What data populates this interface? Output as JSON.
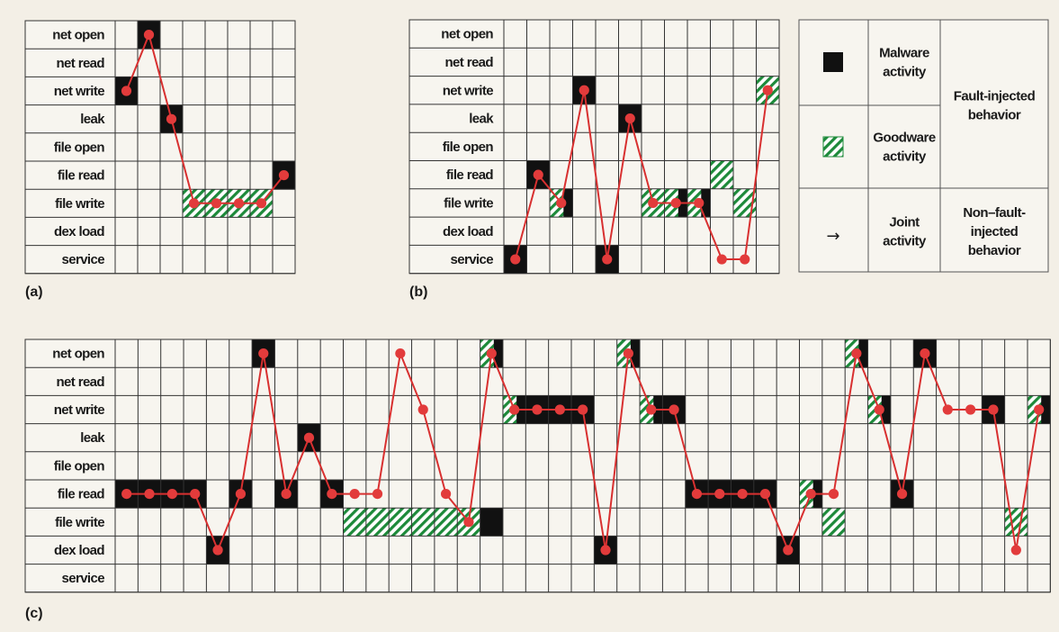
{
  "rows": [
    "net open",
    "net read",
    "net write",
    "leak",
    "file open",
    "file read",
    "file write",
    "dex load",
    "service"
  ],
  "panels": [
    {
      "letter": "(a)",
      "columns": 8,
      "malware": [
        [
          1,
          0
        ],
        [
          0,
          2
        ],
        [
          2,
          3
        ],
        [
          7,
          5
        ]
      ],
      "goodware": [
        [
          3,
          6
        ],
        [
          4,
          6
        ],
        [
          5,
          6
        ],
        [
          6,
          6
        ]
      ],
      "path": [
        [
          0,
          2
        ],
        [
          1,
          0
        ],
        [
          2,
          3
        ],
        [
          3,
          6
        ],
        [
          4,
          6
        ],
        [
          5,
          6
        ],
        [
          6,
          6
        ],
        [
          7,
          5
        ]
      ]
    },
    {
      "letter": "(b)",
      "columns": 12,
      "malware": [
        [
          0,
          8
        ],
        [
          1,
          5
        ],
        [
          2,
          6
        ],
        [
          3,
          2
        ],
        [
          4,
          8
        ],
        [
          5,
          3
        ],
        [
          7,
          6
        ],
        [
          8,
          6
        ]
      ],
      "goodware": [
        [
          2,
          6
        ],
        [
          6,
          6
        ],
        [
          7,
          6
        ],
        [
          8,
          6
        ],
        [
          9,
          5
        ],
        [
          10,
          6
        ],
        [
          11,
          2
        ]
      ],
      "path": [
        [
          0,
          8
        ],
        [
          1,
          5
        ],
        [
          2,
          6
        ],
        [
          3,
          2
        ],
        [
          4,
          8
        ],
        [
          5,
          3
        ],
        [
          6,
          6
        ],
        [
          7,
          6
        ],
        [
          8,
          6
        ],
        [
          9,
          8
        ],
        [
          10,
          8
        ],
        [
          11,
          2
        ]
      ]
    },
    {
      "letter": "(c)",
      "columns": 41,
      "malware": [
        [
          0,
          5
        ],
        [
          1,
          5
        ],
        [
          2,
          5
        ],
        [
          3,
          5
        ],
        [
          4,
          7
        ],
        [
          5,
          5
        ],
        [
          6,
          0
        ],
        [
          7,
          5
        ],
        [
          8,
          3
        ],
        [
          9,
          5
        ],
        [
          16,
          6
        ],
        [
          16,
          0
        ],
        [
          17,
          2
        ],
        [
          18,
          2
        ],
        [
          19,
          2
        ],
        [
          20,
          2
        ],
        [
          21,
          7
        ],
        [
          22,
          0
        ],
        [
          23,
          2
        ],
        [
          24,
          2
        ],
        [
          25,
          5
        ],
        [
          26,
          5
        ],
        [
          27,
          5
        ],
        [
          28,
          5
        ],
        [
          29,
          7
        ],
        [
          30,
          5
        ],
        [
          32,
          0
        ],
        [
          33,
          2
        ],
        [
          34,
          5
        ],
        [
          35,
          0
        ],
        [
          38,
          2
        ],
        [
          40,
          2
        ]
      ],
      "goodware": [
        [
          10,
          6
        ],
        [
          11,
          6
        ],
        [
          12,
          6
        ],
        [
          13,
          6
        ],
        [
          14,
          6
        ],
        [
          15,
          6
        ],
        [
          16,
          0
        ],
        [
          17,
          2
        ],
        [
          22,
          0
        ],
        [
          23,
          2
        ],
        [
          30,
          5
        ],
        [
          31,
          6
        ],
        [
          32,
          0
        ],
        [
          33,
          2
        ],
        [
          39,
          6
        ],
        [
          40,
          2
        ]
      ],
      "path": [
        [
          0,
          5
        ],
        [
          1,
          5
        ],
        [
          2,
          5
        ],
        [
          3,
          5
        ],
        [
          4,
          7
        ],
        [
          5,
          5
        ],
        [
          6,
          0
        ],
        [
          7,
          5
        ],
        [
          8,
          3
        ],
        [
          9,
          5
        ],
        [
          10,
          5
        ],
        [
          11,
          5
        ],
        [
          12,
          0
        ],
        [
          13,
          2
        ],
        [
          14,
          5
        ],
        [
          15,
          6
        ],
        [
          16,
          0
        ],
        [
          17,
          2
        ],
        [
          18,
          2
        ],
        [
          19,
          2
        ],
        [
          20,
          2
        ],
        [
          21,
          7
        ],
        [
          22,
          0
        ],
        [
          23,
          2
        ],
        [
          24,
          2
        ],
        [
          25,
          5
        ],
        [
          26,
          5
        ],
        [
          27,
          5
        ],
        [
          28,
          5
        ],
        [
          29,
          7
        ],
        [
          30,
          5
        ],
        [
          31,
          5
        ],
        [
          32,
          0
        ],
        [
          33,
          2
        ],
        [
          34,
          5
        ],
        [
          35,
          0
        ],
        [
          36,
          2
        ],
        [
          37,
          2
        ],
        [
          38,
          2
        ],
        [
          39,
          7
        ],
        [
          40,
          2
        ]
      ]
    }
  ],
  "legend": {
    "malware": [
      "Malware",
      "activity"
    ],
    "goodware": [
      "Goodware",
      "activity"
    ],
    "joint": [
      "Joint",
      "activity"
    ],
    "joint_symbol": "→",
    "fault_injected": [
      "Fault-injected",
      "behavior"
    ],
    "non_fault_injected": [
      "Non–fault-",
      "injected",
      "behavior"
    ]
  },
  "colors": {
    "malware": "#111111",
    "goodware_dark": "#1d8a3a",
    "goodware_light": "#ffffff",
    "path_line": "#d83030",
    "path_dot": "#e23b3b",
    "grid": "#333333",
    "background": "#f3efe6",
    "panel_bg": "#f7f5ef"
  }
}
